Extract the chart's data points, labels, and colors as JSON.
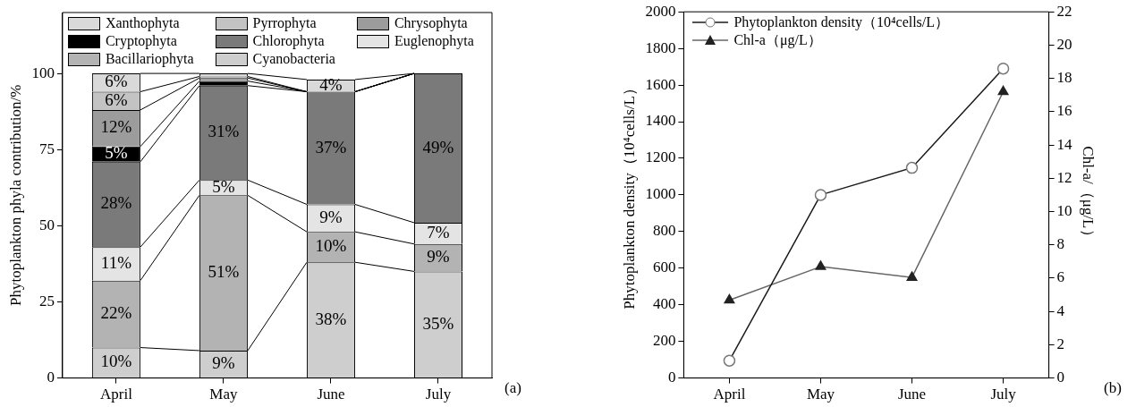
{
  "chart_data": [
    {
      "type": "bar",
      "stacked": true,
      "categories": [
        "April",
        "May",
        "June",
        "July"
      ],
      "ylabel": "Phytoplankton phyla contribution/%",
      "ylim": [
        0,
        120
      ],
      "yticks": [
        0,
        25,
        50,
        75,
        100
      ],
      "grid": false,
      "legend": "top",
      "annotations": [
        "(a)"
      ],
      "series": [
        {
          "name": "Cyanobacteria",
          "color": "#cecece",
          "values": [
            10,
            9,
            38,
            35
          ],
          "value_labels": [
            "10%",
            "9%",
            "38%",
            "35%"
          ]
        },
        {
          "name": "Bacillariophyta",
          "color": "#b3b3b3",
          "values": [
            22,
            51,
            10,
            9
          ],
          "value_labels": [
            "22%",
            "51%",
            "10%",
            "9%"
          ]
        },
        {
          "name": "Euglenophyta",
          "color": "#e4e4e4",
          "values": [
            11,
            5,
            9,
            7
          ],
          "value_labels": [
            "11%",
            "5%",
            "9%",
            "7%"
          ]
        },
        {
          "name": "Chlorophyta",
          "color": "#7a7a7a",
          "values": [
            28,
            31,
            37,
            49
          ],
          "value_labels": [
            "28%",
            "31%",
            "37%",
            "49%"
          ]
        },
        {
          "name": "Cryptophyta",
          "color": "#000000",
          "values": [
            5,
            1.5,
            0,
            0
          ],
          "value_labels": [
            "5%",
            null,
            null,
            null
          ]
        },
        {
          "name": "Chrysophyta",
          "color": "#9c9c9c",
          "values": [
            12,
            1,
            0,
            0
          ],
          "value_labels": [
            "12%",
            null,
            null,
            null
          ]
        },
        {
          "name": "Pyrrophyta",
          "color": "#c3c3c3",
          "values": [
            6,
            0.5,
            0,
            0
          ],
          "value_labels": [
            "6%",
            null,
            null,
            null
          ]
        },
        {
          "name": "Xanthophyta",
          "color": "#d9d9d9",
          "values": [
            6,
            1,
            4,
            0
          ],
          "value_labels": [
            "6%",
            null,
            "4%",
            null
          ]
        }
      ]
    },
    {
      "type": "line",
      "categories": [
        "April",
        "May",
        "June",
        "July"
      ],
      "ylabel": "Phytoplankton density（10⁴cells/L）",
      "y2label": "Chl-a/（μg/L）",
      "ylim": [
        0,
        2000
      ],
      "yticks": [
        0,
        200,
        400,
        600,
        800,
        1000,
        1200,
        1400,
        1600,
        1800,
        2000
      ],
      "y2lim": [
        0,
        22
      ],
      "y2ticks": [
        0,
        2,
        4,
        6,
        8,
        10,
        12,
        14,
        16,
        18,
        20,
        22
      ],
      "grid": false,
      "legend": "top left",
      "annotations": [
        "(b)"
      ],
      "series": [
        {
          "name": "Phytoplankton density（10⁴cells/L）",
          "color": "#1a1a1a",
          "marker": "circle",
          "values": [
            95,
            1000,
            1148,
            1690
          ]
        },
        {
          "name": "Chl-a（μg/L）",
          "color": "#666666",
          "marker": "triangle",
          "axis": "y2",
          "values": [
            4.68,
            6.69,
            6.04,
            17.2
          ]
        }
      ]
    }
  ]
}
